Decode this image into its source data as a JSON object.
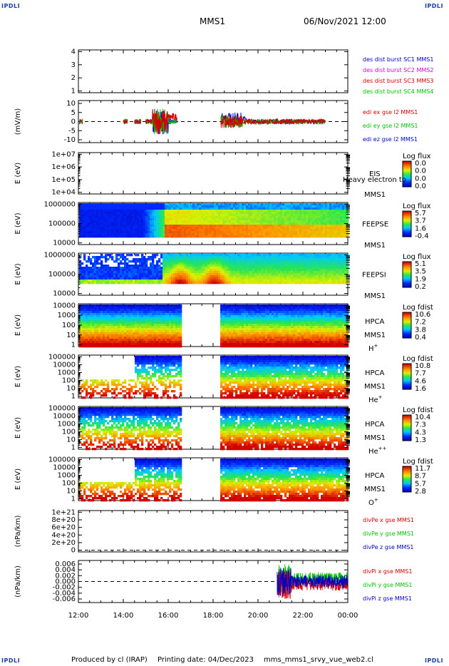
{
  "corners": {
    "tl": "IPDLI",
    "tr": "IPDLI",
    "bl": "IPDLI",
    "br": "IPDLI"
  },
  "header": {
    "mission": "MMS1",
    "date": "06/Nov/2021 12:00"
  },
  "footer": {
    "produced": "Produced by cl (IRAP)",
    "printed": "Printing date: 04/Dec/2023",
    "file": "mms_mms1_srvy_vue_web2.cl"
  },
  "colors": {
    "red": "#d40000",
    "green": "#00c000",
    "blue": "#0000c8",
    "magenta": "#d400d4"
  },
  "chart_data": [
    {
      "type": "line",
      "panel": "burst",
      "yticks": [
        "4",
        "3",
        "2",
        "1"
      ],
      "series": [
        {
          "name": "des dist burst SC1 MMS1",
          "color": "#0000c8"
        },
        {
          "name": "des dist burst SC2 MMS2",
          "color": "#d400d4"
        },
        {
          "name": "des dist burst SC3 MMS3",
          "color": "#d40000"
        },
        {
          "name": "des dist burst SC4 MMS4",
          "color": "#00c000"
        }
      ]
    },
    {
      "type": "line",
      "panel": "edi",
      "ylabel": "(mV/m)",
      "yticks": [
        "10",
        "5",
        "0",
        "-5",
        "-10"
      ],
      "ylim": [
        -12,
        12
      ],
      "series": [
        {
          "name": "edi ex gse l2 MMS1",
          "color": "#d40000"
        },
        {
          "name": "edi ey gse l2 MMS1",
          "color": "#00c000"
        },
        {
          "name": "edi ez gse l2 MMS1",
          "color": "#0000c8"
        }
      ]
    },
    {
      "type": "heatmap",
      "panel": "eis",
      "ylabel": "E (eV)",
      "yticks": [
        "1e+07",
        "1e+06",
        "1e+05",
        "1e+04"
      ],
      "labels": [
        "EIS",
        "MMS1"
      ],
      "overlay": "Heavy electron to",
      "cb_title": "Log flux",
      "cb_ticks": [
        "0.0",
        "0.0",
        "0.0",
        "0.0"
      ]
    },
    {
      "type": "heatmap",
      "panel": "feepse",
      "ylabel": "E (eV)",
      "yticks": [
        "1000000",
        "100000",
        "10000"
      ],
      "labels": [
        "FEEPSE",
        "MMS1"
      ],
      "cb_title": "Log flux",
      "cb_ticks": [
        "5.7",
        "3.7",
        "1.6",
        "-0.4"
      ]
    },
    {
      "type": "heatmap",
      "panel": "feepsi",
      "ylabel": "E (eV)",
      "yticks": [
        "1000000",
        "100000",
        "10000"
      ],
      "labels": [
        "FEEPSI",
        "MMS1"
      ],
      "cb_title": "Log flux",
      "cb_ticks": [
        "5.1",
        "3.5",
        "1.9",
        "0.2"
      ]
    },
    {
      "type": "heatmap",
      "panel": "hpca-h",
      "ylabel": "E (eV)",
      "yticks": [
        "10000",
        "1000",
        "100",
        "10",
        "1"
      ],
      "labels": [
        "HPCA",
        "MMS1",
        "H+"
      ],
      "cb_title": "Log fdist",
      "cb_ticks": [
        "10.6",
        "7.2",
        "3.8",
        "0.4"
      ]
    },
    {
      "type": "heatmap",
      "panel": "hpca-he",
      "ylabel": "E (eV)",
      "yticks": [
        "100000",
        "10000",
        "1000",
        "100",
        "10",
        "1"
      ],
      "labels": [
        "HPCA",
        "MMS1",
        "He+"
      ],
      "cb_title": "Log fdist",
      "cb_ticks": [
        "10.8",
        "7.7",
        "4.6",
        "1.6"
      ]
    },
    {
      "type": "heatmap",
      "panel": "hpca-hepp",
      "ylabel": "E (eV)",
      "yticks": [
        "100000",
        "10000",
        "1000",
        "100",
        "10",
        "1"
      ],
      "labels": [
        "HPCA",
        "MMS1",
        "He++"
      ],
      "cb_title": "Log fdist",
      "cb_ticks": [
        "10.4",
        "7.3",
        "4.3",
        "1.3"
      ]
    },
    {
      "type": "heatmap",
      "panel": "hpca-o",
      "ylabel": "E (eV)",
      "yticks": [
        "100000",
        "10000",
        "1000",
        "100",
        "10",
        "1"
      ],
      "labels": [
        "HPCA",
        "MMS1",
        "O+"
      ],
      "cb_title": "Log fdist",
      "cb_ticks": [
        "11.7",
        "8.7",
        "5.7",
        "2.8"
      ]
    },
    {
      "type": "line",
      "panel": "divpe",
      "ylabel": "(nPa/km)",
      "yticks": [
        "1e+21",
        "8e+20",
        "6e+20",
        "4e+20",
        "2e+20",
        "0"
      ],
      "series": [
        {
          "name": "divPe x gse MMS1",
          "color": "#d40000"
        },
        {
          "name": "divPe y gse MMS1",
          "color": "#00c000"
        },
        {
          "name": "divPe z gse MMS1",
          "color": "#0000c8"
        }
      ]
    },
    {
      "type": "line",
      "panel": "divpi",
      "ylabel": "(nPa/km)",
      "yticks": [
        "0.006",
        "0.004",
        "0.002",
        "0.000",
        "-0.002",
        "-0.004",
        "-0.006"
      ],
      "ylim": [
        -0.007,
        0.007
      ],
      "series": [
        {
          "name": "divPi x gse MMS1",
          "color": "#d40000"
        },
        {
          "name": "divPi y gse MMS1",
          "color": "#00c000"
        },
        {
          "name": "divPi z gse MMS1",
          "color": "#0000c8"
        }
      ]
    }
  ],
  "xaxis": {
    "ticks": [
      "12:00",
      "14:00",
      "16:00",
      "18:00",
      "20:00",
      "22:00",
      "00:00"
    ],
    "range_hours": [
      12,
      24
    ]
  }
}
